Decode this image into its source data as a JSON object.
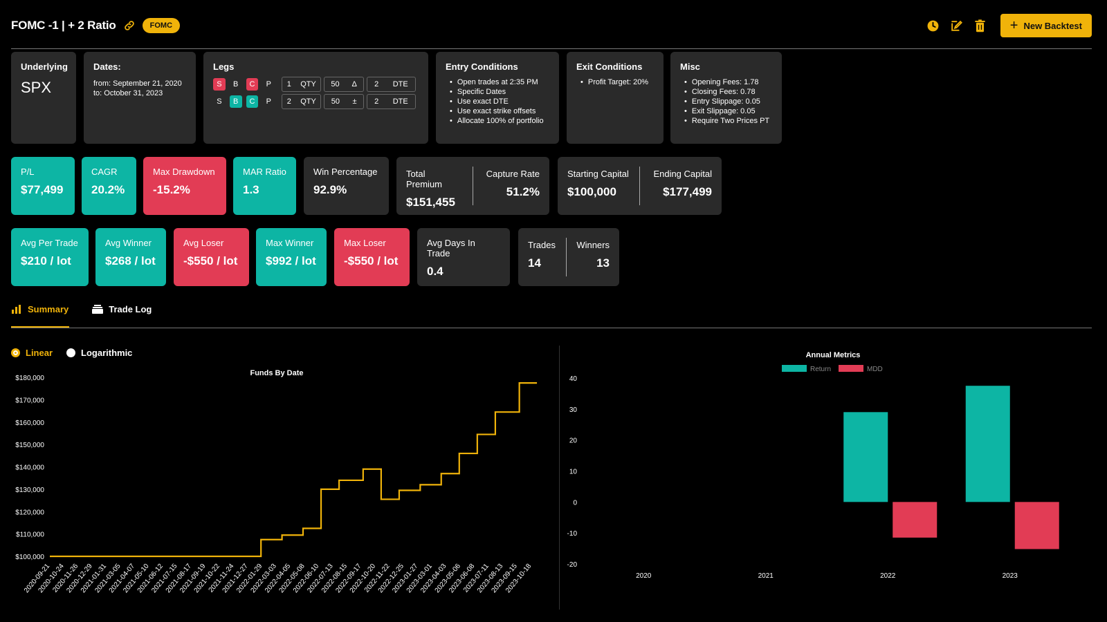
{
  "header": {
    "title": "FOMC -1 | + 2 Ratio",
    "badge": "FOMC",
    "new_backtest_label": "New Backtest"
  },
  "colors": {
    "accent": "#f0b30a",
    "teal": "#0db5a4",
    "red": "#e23c55",
    "card": "#2a2a2a"
  },
  "info": {
    "underlying": {
      "label": "Underlying",
      "value": "SPX"
    },
    "dates": {
      "label": "Dates:",
      "from": "from: September 21, 2020",
      "to": "to: October 31, 2023"
    },
    "legs": {
      "label": "Legs",
      "rows": [
        {
          "side1": "S",
          "side2": "B",
          "type": "C",
          "suffix": "P",
          "qty": "1",
          "qty_unit": "QTY",
          "delta": "50",
          "delta_sym": "Δ",
          "dte": "2",
          "dte_unit": "DTE"
        },
        {
          "side1": "S",
          "side2": "B",
          "type": "C",
          "suffix": "P",
          "qty": "2",
          "qty_unit": "QTY",
          "delta": "50",
          "delta_sym": "±",
          "dte": "2",
          "dte_unit": "DTE"
        }
      ]
    },
    "entry": {
      "label": "Entry Conditions",
      "items": [
        "Open trades at 2:35 PM",
        "Specific Dates",
        "Use exact DTE",
        "Use exact strike offsets",
        "Allocate 100% of portfolio"
      ]
    },
    "exit": {
      "label": "Exit Conditions",
      "items": [
        "Profit Target: 20%"
      ]
    },
    "misc": {
      "label": "Misc",
      "items": [
        "Opening Fees: 1.78",
        "Closing Fees: 0.78",
        "Entry Slippage: 0.05",
        "Exit Slippage: 0.05",
        "Require Two Prices PT"
      ]
    }
  },
  "stats1": {
    "pl": {
      "label": "P/L",
      "value": "$77,499"
    },
    "cagr": {
      "label": "CAGR",
      "value": "20.2%"
    },
    "max_drawdown": {
      "label": "Max Drawdown",
      "value": "-15.2%"
    },
    "mar": {
      "label": "MAR Ratio",
      "value": "1.3"
    },
    "win": {
      "label": "Win Percentage",
      "value": "92.9%"
    },
    "total_premium": {
      "label": "Total Premium",
      "value": "$151,455"
    },
    "capture_rate": {
      "label": "Capture Rate",
      "value": "51.2%"
    },
    "starting_capital": {
      "label": "Starting Capital",
      "value": "$100,000"
    },
    "ending_capital": {
      "label": "Ending Capital",
      "value": "$177,499"
    }
  },
  "stats2": {
    "avg_per_trade": {
      "label": "Avg Per Trade",
      "value": "$210 / lot"
    },
    "avg_winner": {
      "label": "Avg Winner",
      "value": "$268 / lot"
    },
    "avg_loser": {
      "label": "Avg Loser",
      "value": "-$550 / lot"
    },
    "max_winner": {
      "label": "Max Winner",
      "value": "$992 / lot"
    },
    "max_loser": {
      "label": "Max Loser",
      "value": "-$550 / lot"
    },
    "avg_days": {
      "label": "Avg Days In Trade",
      "value": "0.4"
    },
    "trades": {
      "label": "Trades",
      "value": "14"
    },
    "winners": {
      "label": "Winners",
      "value": "13"
    }
  },
  "tabs": {
    "summary": "Summary",
    "trade_log": "Trade Log"
  },
  "scale": {
    "linear": "Linear",
    "logarithmic": "Logarithmic",
    "selected": "Linear"
  },
  "chart_data": [
    {
      "type": "line",
      "title": "Funds By Date",
      "ylim": [
        100000,
        180000
      ],
      "y_ticks": [
        "$100,000",
        "$110,000",
        "$120,000",
        "$130,000",
        "$140,000",
        "$150,000",
        "$160,000",
        "$170,000",
        "$180,000"
      ],
      "x_labels": [
        "2020-09-21",
        "2020-10-24",
        "2020-11-26",
        "2020-12-29",
        "2021-01-31",
        "2021-03-05",
        "2021-04-07",
        "2021-05-10",
        "2021-06-12",
        "2021-07-15",
        "2021-08-17",
        "2021-09-19",
        "2021-10-22",
        "2021-11-24",
        "2021-12-27",
        "2022-01-29",
        "2022-03-03",
        "2022-04-05",
        "2022-05-08",
        "2022-06-10",
        "2022-07-13",
        "2022-08-15",
        "2022-09-17",
        "2022-10-20",
        "2022-11-22",
        "2022-12-25",
        "2023-01-27",
        "2023-03-01",
        "2023-04-03",
        "2023-05-06",
        "2023-06-08",
        "2023-07-11",
        "2023-08-13",
        "2023-09-15",
        "2023-10-18"
      ],
      "series": [
        {
          "x": [
            "2020-09-21",
            "2022-01-26",
            "2022-03-16",
            "2022-05-04",
            "2022-06-15",
            "2022-07-27",
            "2022-09-21",
            "2022-11-02",
            "2022-12-14",
            "2023-02-01",
            "2023-03-22",
            "2023-05-03",
            "2023-06-14",
            "2023-07-26",
            "2023-09-20",
            "2023-10-31"
          ],
          "y": [
            100000,
            107500,
            109500,
            112500,
            130000,
            134000,
            139000,
            125500,
            129500,
            132000,
            137000,
            146000,
            154500,
            164500,
            177499,
            177499
          ]
        }
      ],
      "color": "#f0b30a"
    },
    {
      "type": "bar",
      "title": "Annual Metrics",
      "categories": [
        "2020",
        "2021",
        "2022",
        "2023"
      ],
      "ylim": [
        -20,
        40
      ],
      "y_ticks": [
        "-20",
        "-10",
        "0",
        "10",
        "20",
        "30",
        "40"
      ],
      "series": [
        {
          "name": "Return",
          "values": [
            0,
            0,
            29,
            37.5
          ],
          "color": "#0db5a4"
        },
        {
          "name": "MDD",
          "values": [
            0,
            0,
            -11.5,
            -15.2
          ],
          "color": "#e23c55"
        }
      ]
    }
  ]
}
